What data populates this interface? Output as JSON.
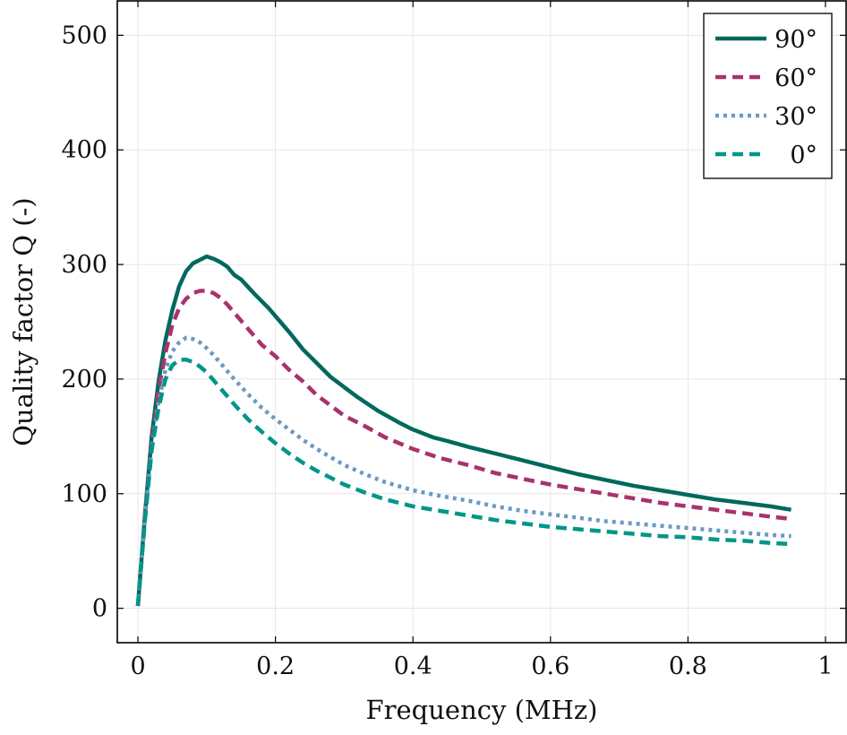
{
  "chart_data": {
    "type": "line",
    "title": "",
    "xlabel": "Frequency (MHz)",
    "ylabel": "Quality factor Q (-)",
    "xlim": [
      -0.03,
      1.03
    ],
    "ylim": [
      -30,
      530
    ],
    "xticks": [
      0,
      0.2,
      0.4,
      0.6,
      0.8,
      1
    ],
    "xtick_labels": [
      "0",
      "0.2",
      "0.4",
      "0.6",
      "0.8",
      "1"
    ],
    "yticks": [
      0,
      100,
      200,
      300,
      400,
      500
    ],
    "ytick_labels": [
      "0",
      "100",
      "200",
      "300",
      "400",
      "500"
    ],
    "grid": true,
    "legend_position": "top-right",
    "series": [
      {
        "name": "90°",
        "color": "#00695c",
        "dash": "solid",
        "x": [
          0,
          0.01,
          0.02,
          0.03,
          0.04,
          0.05,
          0.06,
          0.07,
          0.08,
          0.09,
          0.1,
          0.11,
          0.12,
          0.13,
          0.14,
          0.15,
          0.17,
          0.19,
          0.2,
          0.22,
          0.24,
          0.26,
          0.28,
          0.3,
          0.32,
          0.35,
          0.38,
          0.4,
          0.43,
          0.45,
          0.48,
          0.52,
          0.56,
          0.6,
          0.64,
          0.68,
          0.72,
          0.76,
          0.8,
          0.84,
          0.88,
          0.92,
          0.95
        ],
        "y": [
          2,
          80,
          150,
          198,
          234,
          260,
          281,
          294,
          301,
          304,
          307,
          305,
          302,
          298,
          291,
          287,
          274,
          262,
          255,
          241,
          226,
          214,
          202,
          193,
          184,
          172,
          162,
          156,
          149,
          146,
          141,
          135,
          129,
          123,
          117,
          112,
          107,
          103,
          99,
          95,
          92,
          89,
          86
        ]
      },
      {
        "name": "60°",
        "color": "#a8336d",
        "dash": "dashed",
        "x": [
          0,
          0.01,
          0.02,
          0.03,
          0.04,
          0.05,
          0.06,
          0.07,
          0.08,
          0.09,
          0.1,
          0.11,
          0.12,
          0.13,
          0.14,
          0.16,
          0.18,
          0.2,
          0.22,
          0.24,
          0.26,
          0.28,
          0.3,
          0.33,
          0.36,
          0.4,
          0.44,
          0.48,
          0.52,
          0.56,
          0.6,
          0.64,
          0.68,
          0.72,
          0.76,
          0.8,
          0.84,
          0.88,
          0.92,
          0.95
        ],
        "y": [
          2,
          78,
          145,
          190,
          223,
          247,
          262,
          270,
          275,
          277,
          277,
          275,
          271,
          265,
          258,
          244,
          230,
          220,
          208,
          198,
          186,
          177,
          168,
          159,
          149,
          139,
          131,
          125,
          118,
          113,
          108,
          104,
          100,
          96,
          92,
          89,
          86,
          83,
          80,
          78
        ]
      },
      {
        "name": "30°",
        "color": "#6b9ac4",
        "dash": "dotted",
        "x": [
          0,
          0.01,
          0.02,
          0.03,
          0.04,
          0.05,
          0.06,
          0.07,
          0.08,
          0.09,
          0.1,
          0.11,
          0.12,
          0.13,
          0.14,
          0.16,
          0.18,
          0.2,
          0.22,
          0.24,
          0.26,
          0.28,
          0.3,
          0.33,
          0.36,
          0.4,
          0.44,
          0.48,
          0.52,
          0.56,
          0.6,
          0.64,
          0.68,
          0.72,
          0.76,
          0.8,
          0.84,
          0.88,
          0.92,
          0.95
        ],
        "y": [
          2,
          76,
          140,
          180,
          208,
          224,
          232,
          236,
          235,
          232,
          227,
          221,
          214,
          207,
          200,
          187,
          175,
          165,
          156,
          147,
          139,
          132,
          125,
          117,
          110,
          103,
          98,
          94,
          89,
          85,
          82,
          79,
          76,
          74,
          72,
          70,
          68,
          66,
          64,
          63
        ]
      },
      {
        "name": "0°",
        "color": "#009688",
        "dash": "dashed",
        "x": [
          0,
          0.01,
          0.02,
          0.03,
          0.04,
          0.05,
          0.06,
          0.07,
          0.08,
          0.09,
          0.1,
          0.11,
          0.12,
          0.13,
          0.14,
          0.16,
          0.18,
          0.2,
          0.22,
          0.24,
          0.26,
          0.28,
          0.3,
          0.33,
          0.36,
          0.4,
          0.44,
          0.48,
          0.52,
          0.56,
          0.6,
          0.64,
          0.68,
          0.72,
          0.76,
          0.8,
          0.84,
          0.88,
          0.92,
          0.95
        ],
        "y": [
          2,
          75,
          138,
          175,
          200,
          212,
          217,
          217,
          215,
          211,
          206,
          199,
          192,
          185,
          178,
          165,
          154,
          144,
          135,
          127,
          120,
          114,
          108,
          101,
          95,
          89,
          85,
          81,
          77,
          74,
          71,
          69,
          67,
          65,
          63,
          62,
          60,
          59,
          57,
          56
        ]
      }
    ]
  }
}
